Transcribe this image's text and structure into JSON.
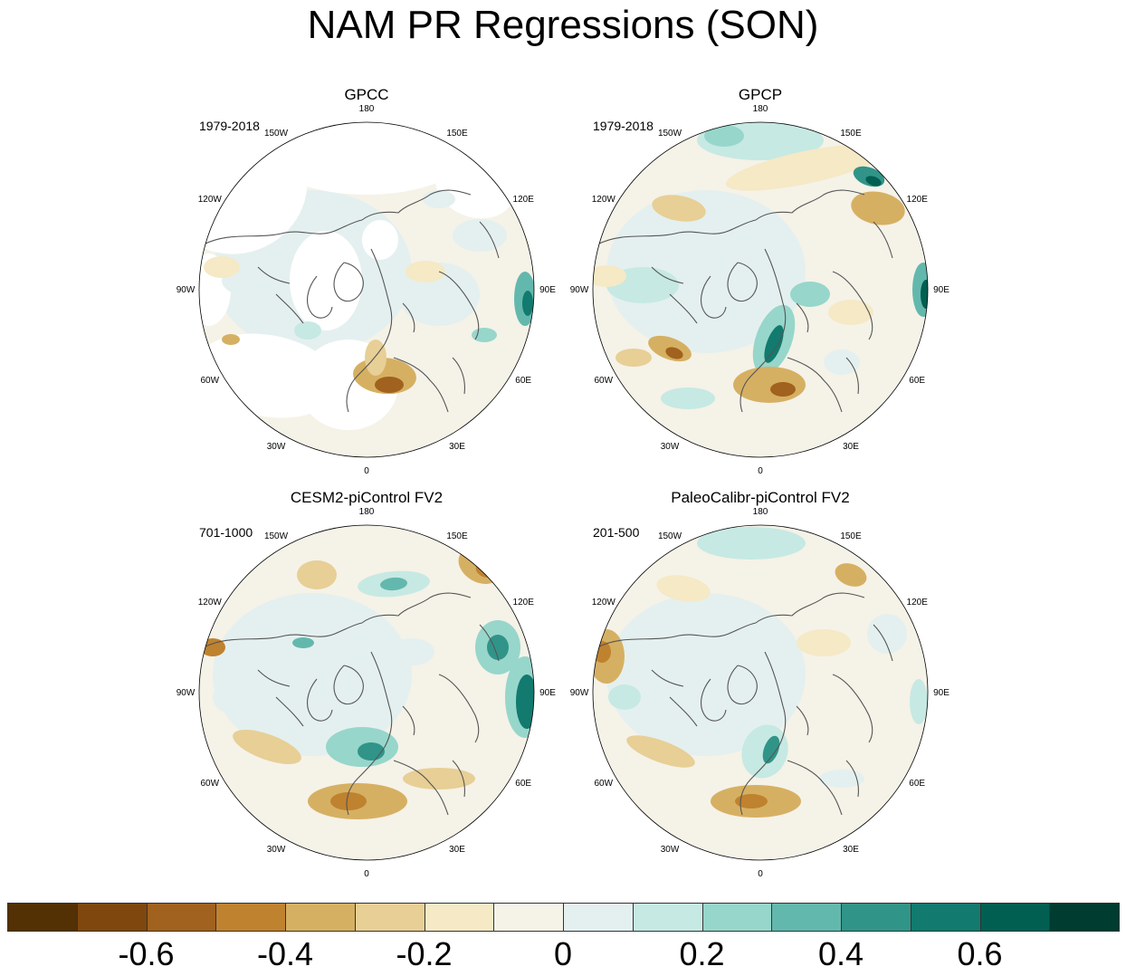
{
  "title": "NAM PR Regressions (SON)",
  "panels": [
    {
      "title": "GPCC",
      "period": "1979-2018",
      "land_only": true,
      "pattern": "gpcc"
    },
    {
      "title": "GPCP",
      "period": "1979-2018",
      "land_only": false,
      "pattern": "gpcp"
    },
    {
      "title": "CESM2-piControl FV2",
      "period": "701-1000",
      "land_only": false,
      "pattern": "cesm"
    },
    {
      "title": "PaleoCalibr-piControl FV2",
      "period": "201-500",
      "land_only": false,
      "pattern": "paleo"
    }
  ],
  "longitude_labels": [
    "180",
    "150E",
    "120E",
    "90E",
    "60E",
    "30E",
    "0",
    "30W",
    "60W",
    "90W",
    "120W",
    "150W"
  ],
  "colorbar": {
    "colors": [
      "#543005",
      "#7f470d",
      "#a0621e",
      "#bf822f",
      "#d6b062",
      "#e7cf96",
      "#f5e9c6",
      "#f5f2e8",
      "#e4f0ef",
      "#c6e9e3",
      "#97d6cb",
      "#63b8ad",
      "#319488",
      "#127a6e",
      "#015f52",
      "#003c30"
    ],
    "tick_labels": [
      "-0.6",
      "-0.4",
      "-0.2",
      "0",
      "0.2",
      "0.4",
      "0.6"
    ],
    "tick_values": [
      -0.6,
      -0.4,
      -0.2,
      0,
      0.2,
      0.4,
      0.6
    ]
  }
}
